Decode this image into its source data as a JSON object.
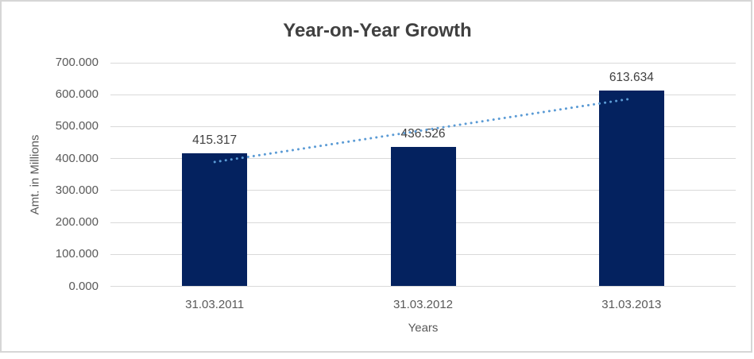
{
  "chart_data": {
    "type": "bar",
    "title": "Year-on-Year Growth",
    "categories": [
      "31.03.2011",
      "31.03.2012",
      "31.03.2013"
    ],
    "values": [
      415.317,
      436.526,
      613.634
    ],
    "data_labels": [
      "415.317",
      "436.526",
      "613.634"
    ],
    "xlabel": "Years",
    "ylabel": "Amt. in Millions",
    "ylim": [
      0,
      700
    ],
    "ytick_step": 100,
    "ytick_labels": [
      "0.000",
      "100.000",
      "200.000",
      "300.000",
      "400.000",
      "500.000",
      "600.000",
      "700.000"
    ],
    "grid": true,
    "legend": "none",
    "trendline": {
      "type": "linear",
      "style": "dotted",
      "start_value": 389.33,
      "end_value": 587.65
    },
    "colors": {
      "bar": "#04225F",
      "trendline": "#5B9BD5",
      "gridline": "#D9D9D9",
      "title_text": "#404040",
      "axis_text": "#595959",
      "data_label_text": "#404040",
      "frame_border": "#D6D6D6",
      "background": "#FFFFFF"
    }
  }
}
